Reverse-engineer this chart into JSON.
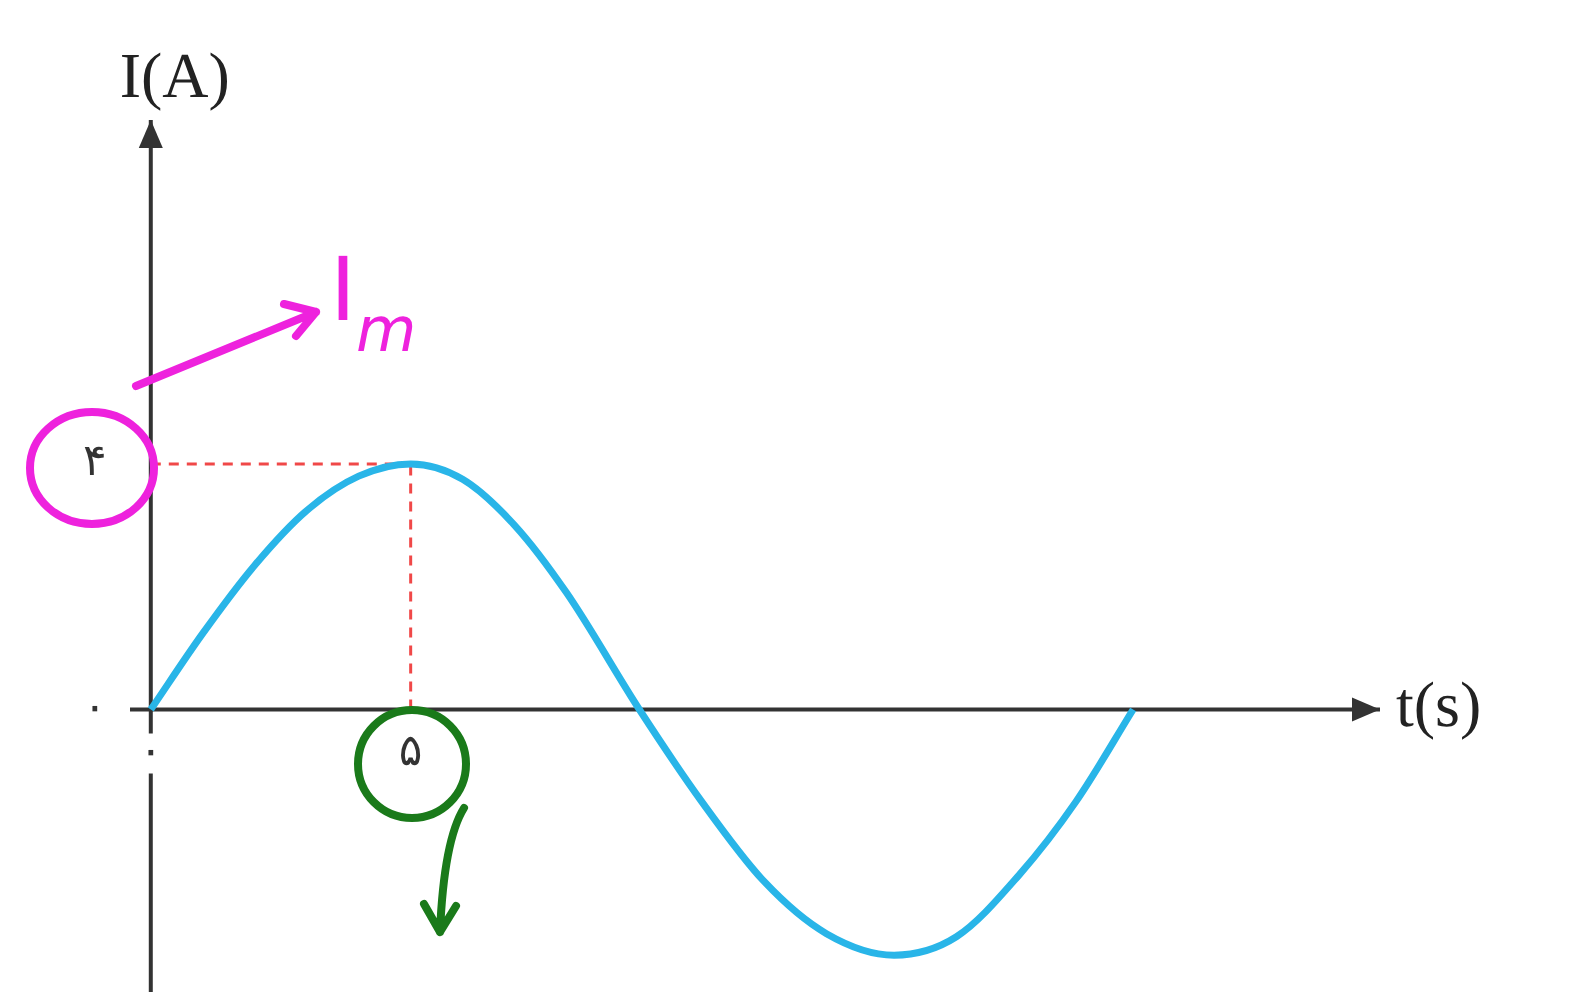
{
  "chart_data": {
    "type": "line",
    "xlabel": "t(s)",
    "ylabel": "I(A)",
    "x": [
      0,
      1,
      2,
      3,
      4,
      5,
      6,
      7,
      8,
      9.4,
      10.6,
      11.8,
      13,
      14.3,
      15.5,
      16.7,
      17.8,
      18.9
    ],
    "series": [
      {
        "color": "#29b5e8",
        "values": [
          0,
          1.24,
          2.35,
          3.24,
          3.8,
          4,
          3.75,
          3.0,
          1.9,
          0,
          -1.5,
          -2.8,
          -3.65,
          -4,
          -3.7,
          -2.7,
          -1.5,
          0
        ]
      }
    ],
    "xlim": [
      -0.4,
      23.65
    ],
    "ylim": [
      -4.6,
      9.6
    ],
    "xticks": [
      {
        "value": 0,
        "label": "۰"
      },
      {
        "value": 5,
        "label": "۵"
      }
    ],
    "yticks": [
      {
        "value": 0,
        "label": "۰"
      },
      {
        "value": 4,
        "label": "۴"
      }
    ],
    "ref_lines": [
      {
        "axis": "x",
        "value": 5,
        "color": "#f04848",
        "line_style": "dashed"
      },
      {
        "axis": "y",
        "value": 4,
        "color": "#f04848",
        "line_style": "dashed"
      }
    ],
    "annotations": [
      "I$_{m}$"
    ],
    "legend": false,
    "marker": "none"
  }
}
